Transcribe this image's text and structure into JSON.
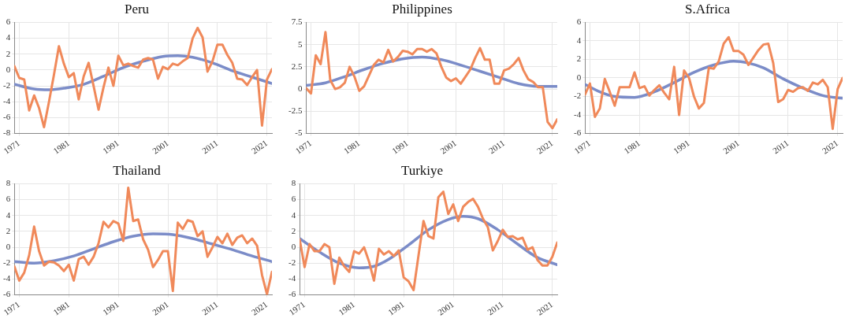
{
  "chart_data": [
    {
      "type": "line",
      "title": "Peru",
      "x": [
        1970,
        1971,
        1972,
        1973,
        1974,
        1975,
        1976,
        1977,
        1978,
        1979,
        1980,
        1981,
        1982,
        1983,
        1984,
        1985,
        1986,
        1987,
        1988,
        1989,
        1990,
        1991,
        1992,
        1993,
        1994,
        1995,
        1996,
        1997,
        1998,
        1999,
        2000,
        2001,
        2002,
        2003,
        2004,
        2005,
        2006,
        2007,
        2008,
        2009,
        2010,
        2011,
        2012,
        2013,
        2014,
        2015,
        2016,
        2017,
        2018,
        2019,
        2020,
        2021,
        2022
      ],
      "xlim": [
        1970,
        2022
      ],
      "xticks": [
        1971,
        1981,
        1991,
        2001,
        2011,
        2021
      ],
      "ylim": [
        -8,
        6
      ],
      "yticks": [
        -8,
        -6,
        -4,
        -2,
        0,
        2,
        4,
        6
      ],
      "grid": true,
      "series": [
        {
          "color": "#f0895a",
          "values": [
            0.5,
            -1,
            -1.2,
            -5.1,
            -3.2,
            -4.8,
            -7.2,
            -4,
            -0.6,
            3,
            0.8,
            -0.9,
            -0.4,
            -3.7,
            -0.8,
            0.9,
            -2,
            -5,
            -2.2,
            0.3,
            -2,
            1.8,
            0.6,
            0.8,
            0.5,
            0.3,
            1.3,
            1.5,
            1.3,
            -1.1,
            0.4,
            0.1,
            0.8,
            0.6,
            1.1,
            1.5,
            4,
            5.3,
            4.1,
            -0.2,
            1.1,
            3.2,
            3.2,
            1.9,
            0.9,
            -1.1,
            -1.2,
            -1.9,
            -0.9,
            0,
            -7,
            -1.2,
            0.1
          ]
        },
        {
          "color": "#7b8cc8",
          "x": [
            1970,
            1974,
            1977,
            1980,
            1984,
            1988,
            1992,
            1996,
            2000,
            2003,
            2006,
            2010,
            2014,
            2018,
            2022
          ],
          "values": [
            -1.8,
            -2.4,
            -2.5,
            -2.3,
            -1.8,
            -0.8,
            0.3,
            1.1,
            1.7,
            1.8,
            1.6,
            0.9,
            -0.1,
            -0.9,
            -1.7
          ]
        }
      ]
    },
    {
      "type": "line",
      "title": "Philippines",
      "x": [
        1970,
        1971,
        1972,
        1973,
        1974,
        1975,
        1976,
        1977,
        1978,
        1979,
        1980,
        1981,
        1982,
        1983,
        1984,
        1985,
        1986,
        1987,
        1988,
        1989,
        1990,
        1991,
        1992,
        1993,
        1994,
        1995,
        1996,
        1997,
        1998,
        1999,
        2000,
        2001,
        2002,
        2003,
        2004,
        2005,
        2006,
        2007,
        2008,
        2009,
        2010,
        2011,
        2012,
        2013,
        2014,
        2015,
        2016,
        2017,
        2018,
        2019,
        2020,
        2021,
        2022
      ],
      "xlim": [
        1970,
        2022
      ],
      "xticks": [
        1971,
        1981,
        1991,
        2001,
        2011,
        2021
      ],
      "ylim": [
        -5,
        7.5
      ],
      "yticks": [
        -5,
        -2.5,
        0,
        2.5,
        5,
        7.5
      ],
      "grid": true,
      "series": [
        {
          "color": "#f0895a",
          "values": [
            0.1,
            -0.5,
            3.8,
            2.8,
            6.4,
            1,
            0,
            0.2,
            0.7,
            2.5,
            1.4,
            -0.2,
            0.3,
            1.5,
            2.7,
            3.3,
            3,
            4.4,
            3.1,
            3.6,
            4.3,
            4.2,
            3.9,
            4.5,
            4.5,
            4.2,
            4.5,
            4,
            2.5,
            1.3,
            0.9,
            1.2,
            0.6,
            1.4,
            2.2,
            3.5,
            4.6,
            3.3,
            3.3,
            0.6,
            0.6,
            2.1,
            2.3,
            2.8,
            3.5,
            2.1,
            1.1,
            0.8,
            0.2,
            0.2,
            -3.7,
            -4.4,
            -3.4
          ]
        },
        {
          "color": "#7b8cc8",
          "x": [
            1970,
            1974,
            1978,
            1982,
            1986,
            1990,
            1994,
            1998,
            2002,
            2006,
            2010,
            2014,
            2018,
            2022
          ],
          "values": [
            0.4,
            0.7,
            1.4,
            2.2,
            2.9,
            3.4,
            3.6,
            3.3,
            2.7,
            2,
            1.3,
            0.6,
            0.3,
            0.3
          ]
        }
      ]
    },
    {
      "type": "line",
      "title": "S.Africa",
      "x": [
        1970,
        1971,
        1972,
        1973,
        1974,
        1975,
        1976,
        1977,
        1978,
        1979,
        1980,
        1981,
        1982,
        1983,
        1984,
        1985,
        1986,
        1987,
        1988,
        1989,
        1990,
        1991,
        1992,
        1993,
        1994,
        1995,
        1996,
        1997,
        1998,
        1999,
        2000,
        2001,
        2002,
        2003,
        2004,
        2005,
        2006,
        2007,
        2008,
        2009,
        2010,
        2011,
        2012,
        2013,
        2014,
        2015,
        2016,
        2017,
        2018,
        2019,
        2020,
        2021,
        2022
      ],
      "xlim": [
        1970,
        2022
      ],
      "xticks": [
        1971,
        1981,
        1991,
        2001,
        2011,
        2021
      ],
      "ylim": [
        -6,
        6
      ],
      "yticks": [
        -6,
        -4,
        -2,
        0,
        2,
        4,
        6
      ],
      "grid": true,
      "series": [
        {
          "color": "#f0895a",
          "values": [
            -1.8,
            -0.6,
            -4.2,
            -3.3,
            -0.1,
            -1.5,
            -3,
            -1,
            -1,
            -1,
            0.6,
            -1.1,
            -0.9,
            -1.9,
            -1.3,
            -0.8,
            -1.6,
            -2.3,
            1.2,
            -4,
            0.8,
            0,
            -2,
            -3.3,
            -2.7,
            1.1,
            1,
            1.8,
            3.7,
            4.4,
            2.9,
            2.9,
            2.5,
            1.4,
            2.2,
            3,
            3.6,
            3.7,
            1.6,
            -2.6,
            -2.3,
            -1.3,
            -1.5,
            -1.1,
            -1,
            -1.4,
            -0.5,
            -0.7,
            -0.2,
            -1,
            -5.5,
            -1.2,
            0
          ]
        },
        {
          "color": "#7b8cc8",
          "x": [
            1970,
            1973,
            1976,
            1980,
            1984,
            1988,
            1992,
            1996,
            2000,
            2003,
            2006,
            2010,
            2014,
            2018,
            2022
          ],
          "values": [
            -0.7,
            -1.5,
            -2,
            -2.1,
            -1.5,
            -0.5,
            0.6,
            1.4,
            1.8,
            1.6,
            1.1,
            -0.1,
            -1.1,
            -1.9,
            -2.2
          ]
        }
      ]
    },
    {
      "type": "line",
      "title": "Thailand",
      "x": [
        1970,
        1971,
        1972,
        1973,
        1974,
        1975,
        1976,
        1977,
        1978,
        1979,
        1980,
        1981,
        1982,
        1983,
        1984,
        1985,
        1986,
        1987,
        1988,
        1989,
        1990,
        1991,
        1992,
        1993,
        1994,
        1995,
        1996,
        1997,
        1998,
        1999,
        2000,
        2001,
        2002,
        2003,
        2004,
        2005,
        2006,
        2007,
        2008,
        2009,
        2010,
        2011,
        2012,
        2013,
        2014,
        2015,
        2016,
        2017,
        2018,
        2019,
        2020,
        2021,
        2022
      ],
      "xlim": [
        1970,
        2022
      ],
      "xticks": [
        1971,
        1981,
        1991,
        2001,
        2011,
        2021
      ],
      "ylim": [
        -6,
        8
      ],
      "yticks": [
        -6,
        -4,
        -2,
        0,
        2,
        4,
        6,
        8
      ],
      "grid": true,
      "series": [
        {
          "color": "#f0895a",
          "values": [
            -2.4,
            -4.2,
            -3.2,
            -1,
            2.6,
            -0.5,
            -2.3,
            -1.8,
            -1.9,
            -2.3,
            -3,
            -2.2,
            -4.2,
            -1.5,
            -1.2,
            -2.2,
            -1.2,
            0.5,
            3.2,
            2.5,
            3.3,
            3,
            0.8,
            7.5,
            3.3,
            3.5,
            1,
            -0.3,
            -2.5,
            -1.6,
            -0.5,
            -0.5,
            -5.5,
            3.1,
            2.3,
            3.4,
            3.2,
            1.4,
            2,
            -1.2,
            0,
            1.3,
            0.5,
            1.7,
            0.3,
            1.2,
            1.5,
            0.5,
            1.1,
            0.2,
            -3.5,
            -5.9,
            -3.1
          ]
        },
        {
          "color": "#7b8cc8",
          "x": [
            1970,
            1974,
            1978,
            1982,
            1986,
            1990,
            1994,
            1998,
            2002,
            2006,
            2010,
            2014,
            2018,
            2022
          ],
          "values": [
            -1.8,
            -2,
            -1.7,
            -1.1,
            -0.2,
            0.7,
            1.4,
            1.7,
            1.6,
            1.1,
            0.4,
            -0.3,
            -1.1,
            -1.8
          ]
        }
      ]
    },
    {
      "type": "line",
      "title": "Turkiye",
      "x": [
        1970,
        1971,
        1972,
        1973,
        1974,
        1975,
        1976,
        1977,
        1978,
        1979,
        1980,
        1981,
        1982,
        1983,
        1984,
        1985,
        1986,
        1987,
        1988,
        1989,
        1990,
        1991,
        1992,
        1993,
        1994,
        1995,
        1996,
        1997,
        1998,
        1999,
        2000,
        2001,
        2002,
        2003,
        2004,
        2005,
        2006,
        2007,
        2008,
        2009,
        2010,
        2011,
        2012,
        2013,
        2014,
        2015,
        2016,
        2017,
        2018,
        2019,
        2020,
        2021,
        2022
      ],
      "xlim": [
        1970,
        2022
      ],
      "xticks": [
        1971,
        1981,
        1991,
        2001,
        2011,
        2021
      ],
      "ylim": [
        -6,
        8
      ],
      "yticks": [
        -6,
        -4,
        -2,
        0,
        2,
        4,
        6,
        8
      ],
      "grid": true,
      "series": [
        {
          "color": "#f0895a",
          "values": [
            1,
            -2.5,
            0.4,
            -0.5,
            -0.5,
            0.4,
            0,
            -4.6,
            -1.3,
            -2.4,
            -3.1,
            -0.5,
            -0.8,
            0,
            -1.8,
            -4.2,
            -0.2,
            -0.9,
            -0.5,
            -1.1,
            -0.4,
            -3.8,
            -4.3,
            -5.4,
            -1,
            3.3,
            1.4,
            1.1,
            6.3,
            7,
            4.2,
            5.4,
            3.3,
            5.1,
            5.7,
            6.1,
            5.1,
            3.6,
            2.5,
            -0.4,
            0.8,
            2.2,
            1.3,
            1.4,
            1,
            1.2,
            -0.3,
            0,
            -1.6,
            -2.3,
            -2.3,
            -1.2,
            0.6
          ]
        },
        {
          "color": "#7b8cc8",
          "x": [
            1970,
            1974,
            1978,
            1982,
            1985,
            1988,
            1992,
            1996,
            2000,
            2003,
            2006,
            2010,
            2014,
            2018,
            2022
          ],
          "values": [
            1.1,
            -0.6,
            -2,
            -2.6,
            -2.4,
            -1.5,
            0.3,
            2.2,
            3.5,
            3.9,
            3.6,
            2.2,
            0.4,
            -1.3,
            -2.2
          ]
        }
      ]
    }
  ]
}
